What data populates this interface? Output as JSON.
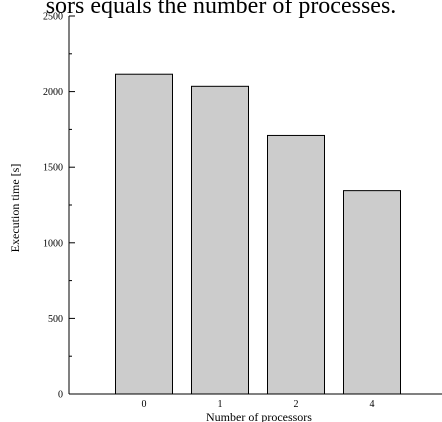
{
  "caption": "sors equals the number of processes.",
  "chart_data": {
    "type": "bar",
    "title": "",
    "xlabel": "Number of processors",
    "ylabel": "Execution time [s]",
    "categories": [
      "0",
      "1",
      "2",
      "4"
    ],
    "values": [
      2115,
      2035,
      1710,
      1345
    ],
    "ylim": [
      0,
      2500
    ],
    "yticks": [
      0,
      500,
      1000,
      1500,
      2000,
      2500
    ],
    "grid": false,
    "bar_color": "#cccccc",
    "edge_color": "#000000"
  }
}
